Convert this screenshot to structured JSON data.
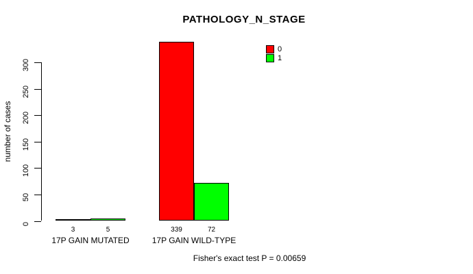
{
  "title": "PATHOLOGY_N_STAGE",
  "footer": "Fisher's exact test P = 0.00659",
  "chart_data": {
    "type": "bar",
    "title": "PATHOLOGY_N_STAGE",
    "xlabel": "",
    "ylabel": "number of cases",
    "categories": [
      "17P GAIN MUTATED",
      "17P GAIN WILD-TYPE"
    ],
    "series": [
      {
        "name": "0",
        "color": "#FF0000",
        "values": [
          3,
          339
        ]
      },
      {
        "name": "1",
        "color": "#00FF00",
        "values": [
          5,
          72
        ]
      }
    ],
    "bar_value_labels": [
      [
        "3",
        "339"
      ],
      [
        "5",
        "72"
      ]
    ],
    "yticks": [
      0,
      50,
      100,
      150,
      200,
      250,
      300
    ],
    "ylim": [
      0,
      340
    ],
    "grid": false,
    "legend_position": "top-right",
    "legend_labels": [
      "0",
      "1"
    ],
    "annotation": "Fisher's exact test P = 0.00659"
  }
}
